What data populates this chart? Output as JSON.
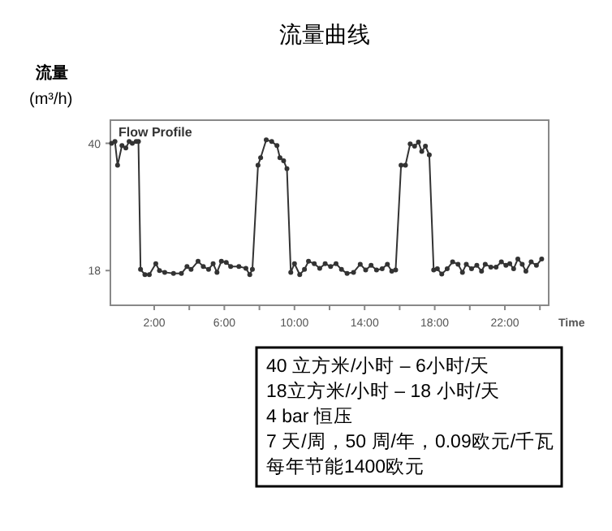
{
  "chart_data": {
    "type": "line",
    "title": "流量曲线",
    "ylabel": "流量\n(m³/h)",
    "xlabel": "Time",
    "annotations": [
      "Flow Profile",
      "40 立方米/小时 – 6小时/天",
      "18立方米/小时 – 18 小时/天",
      "4 bar 恒压",
      "7 天/周，50 周/年，0.09欧元/千瓦",
      "每年节能1400欧元"
    ],
    "xlim": [
      -0.5,
      24.5
    ],
    "ylim": [
      12,
      44
    ],
    "xticks": [
      {
        "value": 2,
        "label": "2:00"
      },
      {
        "value": 4,
        "label": null
      },
      {
        "value": 6,
        "label": "6:00"
      },
      {
        "value": 8,
        "label": null
      },
      {
        "value": 10,
        "label": "10:00"
      },
      {
        "value": 12,
        "label": null
      },
      {
        "value": 14,
        "label": "14:00"
      },
      {
        "value": 16,
        "label": null
      },
      {
        "value": 18,
        "label": "18:00"
      },
      {
        "value": 20,
        "label": null
      },
      {
        "value": 22,
        "label": "22:00"
      },
      {
        "value": 24,
        "label": null
      }
    ],
    "yticks": [
      18,
      40
    ],
    "grid": false,
    "marker": "circle",
    "line_style": "solid",
    "series": [
      {
        "color": "#333333",
        "x": [
          -0.43,
          -0.24,
          -0.09,
          0.16,
          0.38,
          0.57,
          0.75,
          0.97,
          1.1,
          1.22,
          1.47,
          1.72,
          2.09,
          2.3,
          2.6,
          3.1,
          3.55,
          3.87,
          4.1,
          4.5,
          4.8,
          5.1,
          5.36,
          5.58,
          5.83,
          6.11,
          6.36,
          6.83,
          7.23,
          7.45,
          7.6,
          7.92,
          8.07,
          8.39,
          8.7,
          9.0,
          9.17,
          9.38,
          9.57,
          9.79,
          10.0,
          10.3,
          10.57,
          10.8,
          11.13,
          11.44,
          11.75,
          12.06,
          12.37,
          12.68,
          13.0,
          13.37,
          13.75,
          14.06,
          14.37,
          14.68,
          15.0,
          15.3,
          15.55,
          15.77,
          16.08,
          16.33,
          16.6,
          16.85,
          17.07,
          17.26,
          17.47,
          17.69,
          17.94,
          18.15,
          18.4,
          18.71,
          19.02,
          19.33,
          19.58,
          19.8,
          20.1,
          20.4,
          20.67,
          20.88,
          21.2,
          21.5,
          21.8,
          22.06,
          22.28,
          22.5,
          22.74,
          22.99,
          23.2,
          23.5,
          23.8,
          24.1
        ],
        "values": [
          40,
          40.3,
          36.2,
          39.6,
          39.2,
          40.3,
          40,
          40.3,
          40.3,
          18.2,
          17.3,
          17.3,
          19.2,
          18,
          17.7,
          17.5,
          17.5,
          18.7,
          18.2,
          19.6,
          18.7,
          18.2,
          19.2,
          17.7,
          19.6,
          19.4,
          18.7,
          18.7,
          18.4,
          17.3,
          18.2,
          36.2,
          37.5,
          40.6,
          40.3,
          39.6,
          37.5,
          37,
          35.6,
          17.7,
          19.2,
          17.3,
          18.2,
          19.6,
          19.2,
          18.4,
          19.2,
          18.7,
          19.2,
          18.2,
          17.5,
          17.7,
          19.1,
          18.1,
          18.9,
          18.1,
          18.3,
          19.1,
          17.9,
          18.1,
          36.2,
          36.2,
          39.9,
          39.5,
          40.2,
          38.6,
          39.5,
          38,
          18.1,
          18.3,
          17.4,
          18.3,
          19.5,
          19.1,
          17.7,
          19.1,
          18.3,
          18.9,
          17.9,
          19.1,
          18.6,
          18.6,
          19.5,
          18.9,
          19.2,
          18.3,
          20,
          19.1,
          17.9,
          19.5,
          18.9,
          20
        ]
      }
    ]
  }
}
